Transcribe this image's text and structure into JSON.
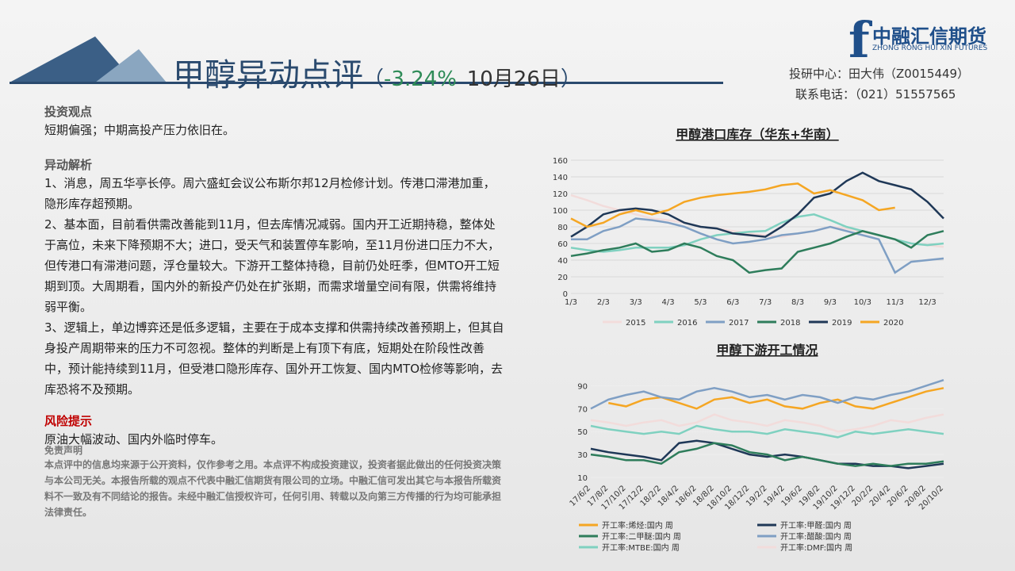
{
  "header": {
    "title": "甲醇异动点评",
    "open": "（",
    "change": "-3.24%",
    "date": "10月26日",
    "close": "）"
  },
  "logo": {
    "brand": "中融汇信期货",
    "brand_en": "ZHONG RONG HUI XIN FUTURES"
  },
  "contact": {
    "analyst": "投研中心：田大伟（Z0015449）",
    "phone": "联系电话：（021）51557565"
  },
  "sections": {
    "view_heading": "投资观点",
    "view_text": "短期偏强；中期高投产压力依旧在。",
    "analysis_heading": "异动解析",
    "analysis": [
      "1、消息，周五华亭长停。周六盛虹会议公布斯尔邦12月检修计划。传港口滞港加重，隐形库存超预期。",
      "2、基本面，目前看供需改善能到11月，但去库情况减弱。国内开工近期持稳，整体处于高位，未来下降预期不大；进口，受天气和装置停车影响，至11月份进口压力不大，但传港口有滞港问题，浮仓量较大。下游开工整体持稳，目前仍处旺季，但MTO开工短期到顶。大周期看，国内外的新投产仍处在扩张期，而需求增量空间有限，供需将维持弱平衡。",
      "3、逻辑上，单边博弈还是低多逻辑，主要在于成本支撑和供需持续改善预期上，但其自身投产周期带来的压力不可忽视。整体的判断是上有顶下有底，短期处在阶段性改善中，预计能持续到11月，但受港口隐形库存、国外开工恢复、国内MTO检修等影响，去库恐将不及预期。"
    ],
    "risk_heading": "风险提示",
    "risk_text": "原油大幅波动、国内外临时停车。",
    "disclaimer_heading": "免责声明",
    "disclaimer_text": "本点评中的信息均来源于公开资料，仅作参考之用。本点评不构成投资建议，投资者据此做出的任何投资决策与本公司无关。本报告所载的观点不代表中融汇信期货有限公司的立场。中融汇信可发出其它与本报告所载资料不一致及有不同结论的报告。未经中融汇信授权许可，任何引用、转载以及向第三方传播的行为均可能承担法律责任。"
  },
  "chart_data": [
    {
      "type": "line",
      "title": "甲醇港口库存（华东+华南）",
      "categories": [
        "1/3",
        null,
        "2/3",
        null,
        "3/3",
        null,
        "4/3",
        null,
        "5/3",
        null,
        "6/3",
        null,
        "7/3",
        null,
        "8/3",
        null,
        "9/3",
        null,
        "10/3",
        null,
        "11/3",
        null,
        "12/3",
        null
      ],
      "ylim": [
        0,
        160
      ],
      "yticks": [
        0,
        20,
        40,
        60,
        80,
        100,
        120,
        140,
        160
      ],
      "grid": true,
      "legend": "bottom",
      "series": [
        {
          "name": "2015",
          "color": "#f2dcdb",
          "values": [
            118,
            112,
            105,
            100,
            95,
            90,
            88,
            85,
            80,
            78,
            75,
            72,
            70,
            68,
            72,
            75,
            80,
            78,
            74,
            70,
            65,
            60,
            58,
            56
          ]
        },
        {
          "name": "2016",
          "color": "#7fd1c0",
          "values": [
            55,
            52,
            50,
            52,
            55,
            55,
            55,
            58,
            65,
            70,
            72,
            74,
            75,
            85,
            92,
            95,
            88,
            80,
            75,
            70,
            65,
            60,
            58,
            60
          ]
        },
        {
          "name": "2017",
          "color": "#7f9fc4",
          "values": [
            65,
            65,
            75,
            80,
            90,
            88,
            85,
            80,
            72,
            65,
            60,
            62,
            65,
            70,
            72,
            75,
            80,
            75,
            70,
            65,
            25,
            38,
            40,
            42
          ]
        },
        {
          "name": "2018",
          "color": "#2e7d5b",
          "values": [
            45,
            48,
            52,
            55,
            60,
            50,
            52,
            60,
            55,
            45,
            40,
            25,
            28,
            30,
            50,
            55,
            60,
            68,
            75,
            70,
            65,
            55,
            70,
            75
          ]
        },
        {
          "name": "2019",
          "color": "#1f3857",
          "values": [
            68,
            80,
            95,
            100,
            102,
            100,
            95,
            85,
            80,
            78,
            72,
            70,
            68,
            80,
            95,
            115,
            120,
            135,
            145,
            135,
            130,
            125,
            110,
            90
          ]
        },
        {
          "name": "2020",
          "color": "#f5a623",
          "values": [
            90,
            80,
            85,
            95,
            100,
            95,
            100,
            110,
            115,
            118,
            120,
            122,
            125,
            130,
            132,
            120,
            124,
            118,
            112,
            100,
            103,
            null,
            null,
            null
          ]
        }
      ]
    },
    {
      "type": "line",
      "title": "甲醇下游开工情况",
      "categories": [
        "17/6/2",
        "17/8/2",
        "17/10/2",
        "17/12/2",
        "18/2/2",
        "18/4/2",
        "18/6/2",
        "18/8/2",
        "18/10/2",
        "18/12/2",
        "19/2/2",
        "19/4/2",
        "19/6/2",
        "19/8/2",
        "19/10/2",
        "19/12/2",
        "20/2/2",
        "20/4/2",
        "20/6/2",
        "20/8/2",
        "20/10/2"
      ],
      "ylim": [
        10,
        100
      ],
      "yticks": [
        10,
        30,
        50,
        70,
        90
      ],
      "grid": false,
      "legend": "bottom",
      "series": [
        {
          "name": "开工率:烯烃:国内 周",
          "color": "#f5a623",
          "values": [
            null,
            75,
            72,
            78,
            80,
            75,
            70,
            78,
            80,
            75,
            78,
            72,
            70,
            75,
            78,
            72,
            70,
            75,
            80,
            85,
            88
          ]
        },
        {
          "name": "开工率:甲醛:国内 周",
          "color": "#1f3857",
          "values": [
            35,
            32,
            30,
            28,
            25,
            40,
            42,
            40,
            35,
            30,
            28,
            30,
            28,
            25,
            22,
            22,
            20,
            20,
            18,
            20,
            22
          ]
        },
        {
          "name": "开工率:二甲醚:国内 周",
          "color": "#2e7d5b",
          "values": [
            30,
            28,
            25,
            25,
            22,
            32,
            35,
            40,
            38,
            32,
            30,
            25,
            28,
            25,
            22,
            20,
            22,
            20,
            22,
            22,
            24
          ]
        },
        {
          "name": "开工率:醋酸:国内 周",
          "color": "#7f9fc4",
          "values": [
            70,
            78,
            82,
            85,
            80,
            78,
            85,
            88,
            85,
            80,
            82,
            78,
            82,
            80,
            75,
            80,
            78,
            82,
            85,
            90,
            95
          ]
        },
        {
          "name": "开工率:MTBE:国内 周",
          "color": "#7fd1c0",
          "values": [
            55,
            52,
            50,
            48,
            50,
            48,
            55,
            52,
            50,
            50,
            48,
            52,
            50,
            48,
            45,
            50,
            48,
            50,
            52,
            50,
            48
          ]
        },
        {
          "name": "开工率:DMF:国内 周",
          "color": "#f2dcdb",
          "values": [
            60,
            58,
            55,
            58,
            60,
            55,
            58,
            65,
            60,
            58,
            55,
            60,
            58,
            55,
            50,
            52,
            55,
            60,
            58,
            62,
            65
          ]
        }
      ]
    }
  ]
}
